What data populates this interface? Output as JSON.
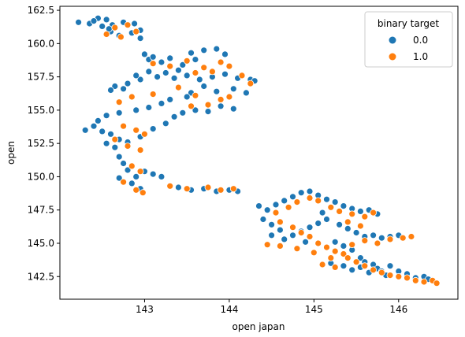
{
  "chart_data": {
    "type": "scatter",
    "title": "",
    "xlabel": "open japan",
    "ylabel": "open",
    "xlim": [
      142.0,
      146.7
    ],
    "ylim": [
      140.8,
      162.8
    ],
    "xticks": [
      143,
      144,
      145,
      146
    ],
    "yticks": [
      142.5,
      145.0,
      147.5,
      150.0,
      152.5,
      155.0,
      157.5,
      160.0,
      162.5
    ],
    "xtick_labels": [
      "143",
      "144",
      "145",
      "146"
    ],
    "ytick_labels": [
      "142.5",
      "145.0",
      "147.5",
      "150.0",
      "152.5",
      "155.0",
      "157.5",
      "160.0",
      "162.5"
    ],
    "grid": false,
    "legend": {
      "title": "binary target",
      "placement": "top-right",
      "entries": [
        {
          "label": "0.0",
          "color": "#1f77b4"
        },
        {
          "label": "1.0",
          "color": "#ff7f0e"
        }
      ]
    },
    "series": [
      {
        "name": "0.0",
        "color": "#1f77b4",
        "points": [
          [
            142.22,
            161.6
          ],
          [
            142.35,
            161.5
          ],
          [
            142.45,
            161.9
          ],
          [
            142.55,
            161.8
          ],
          [
            142.62,
            161.4
          ],
          [
            142.75,
            161.6
          ],
          [
            142.88,
            161.5
          ],
          [
            142.95,
            161.0
          ],
          [
            142.6,
            160.9
          ],
          [
            142.5,
            161.3
          ],
          [
            142.7,
            160.6
          ],
          [
            142.85,
            160.8
          ],
          [
            142.95,
            160.4
          ],
          [
            142.58,
            161.1
          ],
          [
            142.4,
            161.7
          ],
          [
            143.0,
            159.2
          ],
          [
            143.05,
            158.8
          ],
          [
            143.1,
            159.0
          ],
          [
            143.2,
            158.6
          ],
          [
            143.3,
            158.9
          ],
          [
            143.45,
            158.4
          ],
          [
            143.55,
            159.3
          ],
          [
            143.7,
            159.5
          ],
          [
            143.85,
            159.6
          ],
          [
            143.95,
            159.2
          ],
          [
            143.6,
            158.8
          ],
          [
            143.4,
            158.0
          ],
          [
            143.25,
            157.8
          ],
          [
            143.15,
            157.5
          ],
          [
            142.95,
            157.3
          ],
          [
            142.8,
            157.0
          ],
          [
            142.65,
            156.8
          ],
          [
            142.6,
            156.5
          ],
          [
            142.75,
            156.6
          ],
          [
            142.9,
            157.6
          ],
          [
            143.05,
            157.9
          ],
          [
            143.35,
            157.4
          ],
          [
            143.5,
            157.6
          ],
          [
            143.65,
            157.3
          ],
          [
            143.8,
            157.5
          ],
          [
            143.95,
            157.7
          ],
          [
            144.1,
            157.4
          ],
          [
            144.25,
            157.3
          ],
          [
            144.3,
            157.2
          ],
          [
            144.05,
            156.6
          ],
          [
            143.85,
            156.4
          ],
          [
            143.7,
            156.8
          ],
          [
            143.55,
            156.3
          ],
          [
            144.2,
            156.3
          ],
          [
            143.3,
            155.8
          ],
          [
            143.2,
            155.5
          ],
          [
            143.05,
            155.2
          ],
          [
            142.9,
            155.0
          ],
          [
            142.7,
            154.8
          ],
          [
            142.55,
            154.6
          ],
          [
            142.45,
            154.2
          ],
          [
            142.4,
            153.8
          ],
          [
            142.5,
            153.4
          ],
          [
            142.6,
            153.2
          ],
          [
            142.7,
            152.8
          ],
          [
            142.55,
            152.5
          ],
          [
            142.65,
            152.2
          ],
          [
            142.8,
            152.6
          ],
          [
            142.95,
            153.0
          ],
          [
            143.1,
            153.6
          ],
          [
            143.25,
            154.0
          ],
          [
            143.35,
            154.5
          ],
          [
            143.45,
            154.8
          ],
          [
            143.6,
            155.0
          ],
          [
            143.75,
            154.9
          ],
          [
            143.9,
            155.3
          ],
          [
            144.05,
            155.1
          ],
          [
            143.5,
            156.0
          ],
          [
            142.7,
            151.5
          ],
          [
            142.75,
            151.0
          ],
          [
            142.8,
            150.5
          ],
          [
            142.9,
            150.0
          ],
          [
            143.0,
            150.4
          ],
          [
            143.1,
            150.2
          ],
          [
            143.2,
            150.0
          ],
          [
            142.7,
            149.9
          ],
          [
            142.85,
            149.5
          ],
          [
            142.95,
            149.1
          ],
          [
            143.4,
            149.2
          ],
          [
            143.55,
            149.0
          ],
          [
            143.7,
            149.1
          ],
          [
            143.85,
            148.9
          ],
          [
            144.0,
            149.0
          ],
          [
            144.1,
            148.9
          ],
          [
            142.3,
            153.5
          ],
          [
            144.35,
            147.8
          ],
          [
            144.45,
            147.5
          ],
          [
            144.55,
            147.9
          ],
          [
            144.65,
            148.2
          ],
          [
            144.75,
            148.5
          ],
          [
            144.85,
            148.8
          ],
          [
            144.95,
            148.9
          ],
          [
            145.05,
            148.6
          ],
          [
            145.15,
            148.3
          ],
          [
            145.25,
            148.1
          ],
          [
            145.35,
            147.8
          ],
          [
            145.45,
            147.6
          ],
          [
            145.55,
            147.4
          ],
          [
            145.65,
            147.5
          ],
          [
            145.75,
            147.2
          ],
          [
            144.4,
            146.8
          ],
          [
            144.5,
            146.4
          ],
          [
            144.6,
            146.0
          ],
          [
            144.5,
            145.6
          ],
          [
            144.65,
            145.3
          ],
          [
            144.75,
            145.6
          ],
          [
            144.85,
            145.9
          ],
          [
            144.95,
            146.2
          ],
          [
            145.05,
            146.5
          ],
          [
            145.15,
            146.8
          ],
          [
            145.3,
            146.4
          ],
          [
            145.4,
            146.1
          ],
          [
            145.5,
            145.8
          ],
          [
            145.6,
            145.5
          ],
          [
            145.7,
            145.6
          ],
          [
            145.8,
            145.4
          ],
          [
            145.9,
            145.5
          ],
          [
            146.0,
            145.6
          ],
          [
            145.25,
            145.1
          ],
          [
            145.35,
            144.8
          ],
          [
            145.45,
            144.5
          ],
          [
            145.55,
            143.9
          ],
          [
            145.6,
            143.6
          ],
          [
            145.7,
            143.4
          ],
          [
            145.75,
            143.1
          ],
          [
            145.8,
            142.9
          ],
          [
            145.85,
            142.6
          ],
          [
            145.9,
            143.3
          ],
          [
            146.0,
            142.9
          ],
          [
            146.1,
            142.7
          ],
          [
            146.2,
            142.4
          ],
          [
            146.3,
            142.5
          ],
          [
            146.35,
            142.3
          ],
          [
            145.55,
            143.2
          ],
          [
            145.65,
            142.8
          ],
          [
            145.45,
            143.0
          ],
          [
            145.35,
            143.3
          ],
          [
            145.2,
            143.5
          ],
          [
            144.9,
            145.1
          ],
          [
            145.1,
            147.3
          ]
        ]
      },
      {
        "name": "1.0",
        "color": "#ff7f0e",
        "points": [
          [
            142.65,
            161.2
          ],
          [
            142.8,
            161.4
          ],
          [
            142.9,
            160.9
          ],
          [
            142.55,
            160.7
          ],
          [
            142.72,
            160.5
          ],
          [
            143.1,
            158.5
          ],
          [
            143.3,
            158.3
          ],
          [
            143.5,
            158.7
          ],
          [
            143.7,
            158.2
          ],
          [
            143.9,
            158.6
          ],
          [
            144.0,
            158.3
          ],
          [
            143.6,
            157.8
          ],
          [
            143.8,
            157.9
          ],
          [
            144.15,
            157.6
          ],
          [
            144.25,
            157.0
          ],
          [
            143.4,
            156.7
          ],
          [
            143.6,
            156.1
          ],
          [
            143.9,
            155.8
          ],
          [
            144.0,
            156.0
          ],
          [
            143.75,
            155.4
          ],
          [
            143.55,
            155.3
          ],
          [
            143.1,
            156.2
          ],
          [
            142.85,
            156.0
          ],
          [
            142.7,
            155.6
          ],
          [
            142.75,
            153.8
          ],
          [
            142.9,
            153.5
          ],
          [
            143.0,
            153.2
          ],
          [
            142.65,
            152.8
          ],
          [
            142.8,
            152.3
          ],
          [
            142.95,
            152.0
          ],
          [
            142.85,
            150.8
          ],
          [
            142.95,
            150.4
          ],
          [
            142.75,
            149.6
          ],
          [
            142.9,
            149.0
          ],
          [
            142.98,
            148.8
          ],
          [
            143.3,
            149.3
          ],
          [
            143.5,
            149.1
          ],
          [
            143.75,
            149.2
          ],
          [
            143.9,
            149.0
          ],
          [
            144.05,
            149.1
          ],
          [
            144.55,
            147.3
          ],
          [
            144.7,
            147.7
          ],
          [
            144.8,
            148.1
          ],
          [
            144.95,
            148.4
          ],
          [
            145.05,
            148.2
          ],
          [
            145.2,
            147.7
          ],
          [
            145.3,
            147.4
          ],
          [
            145.45,
            147.2
          ],
          [
            145.6,
            147.0
          ],
          [
            145.7,
            147.3
          ],
          [
            144.6,
            146.6
          ],
          [
            144.75,
            146.2
          ],
          [
            144.85,
            145.8
          ],
          [
            144.95,
            145.5
          ],
          [
            145.05,
            145.0
          ],
          [
            145.15,
            144.7
          ],
          [
            145.25,
            144.4
          ],
          [
            145.35,
            144.2
          ],
          [
            145.4,
            143.9
          ],
          [
            145.5,
            143.6
          ],
          [
            145.6,
            143.3
          ],
          [
            145.7,
            143.0
          ],
          [
            145.8,
            142.8
          ],
          [
            145.9,
            142.6
          ],
          [
            146.0,
            142.5
          ],
          [
            146.1,
            142.4
          ],
          [
            146.2,
            142.2
          ],
          [
            146.3,
            142.1
          ],
          [
            146.4,
            142.2
          ],
          [
            146.45,
            142.0
          ],
          [
            144.45,
            144.9
          ],
          [
            144.6,
            144.8
          ],
          [
            144.8,
            144.6
          ],
          [
            145.0,
            144.3
          ],
          [
            145.2,
            143.9
          ],
          [
            145.1,
            143.4
          ],
          [
            145.25,
            143.2
          ],
          [
            145.45,
            144.9
          ],
          [
            145.6,
            145.2
          ],
          [
            145.75,
            145.0
          ],
          [
            145.9,
            145.3
          ],
          [
            146.05,
            145.4
          ],
          [
            146.15,
            145.5
          ],
          [
            145.4,
            146.6
          ],
          [
            145.55,
            146.3
          ]
        ]
      }
    ]
  }
}
